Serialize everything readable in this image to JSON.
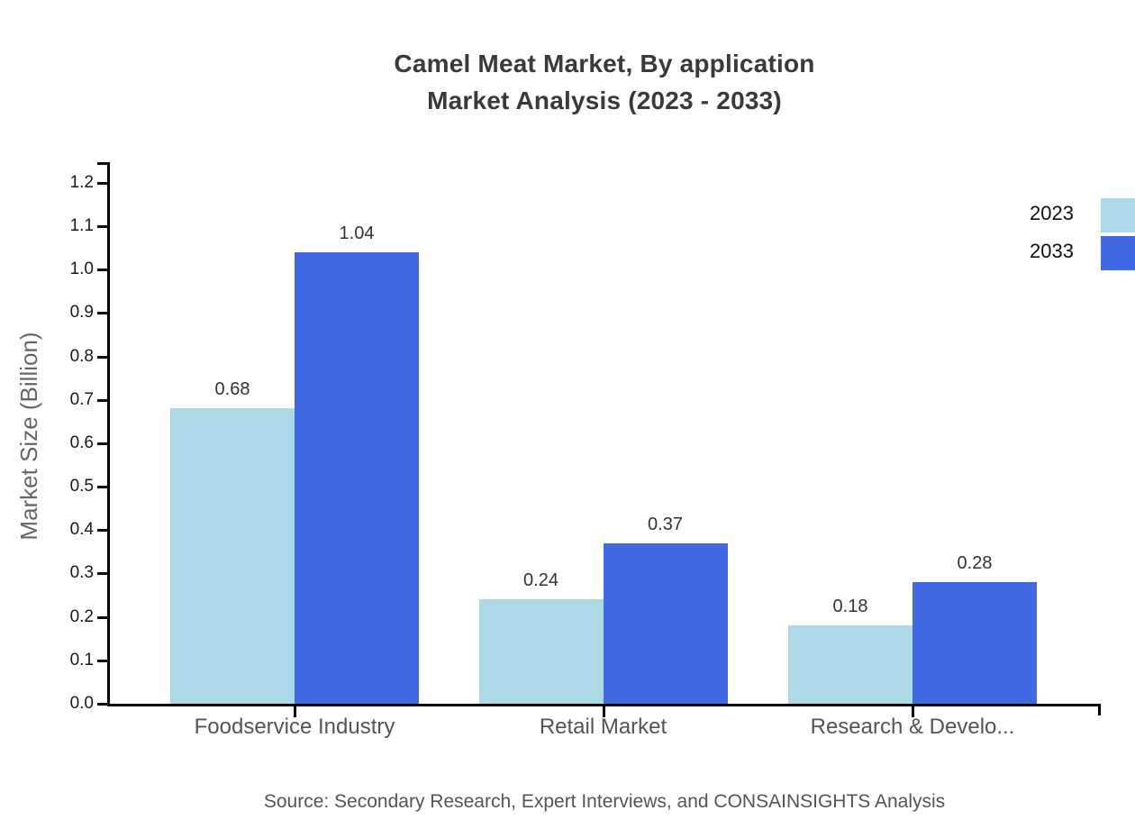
{
  "title": {
    "line1": "Camel Meat Market, By application",
    "line2": "Market Analysis (2023 - 2033)"
  },
  "source": "Source: Secondary Research, Expert Interviews, and CONSAINSIGHTS Analysis",
  "colors": {
    "series_2023": "#add8e6",
    "series_2033": "#4169e1",
    "axis": "#000000",
    "title_text": "#3a3a3a",
    "category_text": "#555555",
    "value_text": "#333333",
    "source_text": "#555555"
  },
  "chart_data": {
    "type": "bar",
    "title": "Camel Meat Market, By application Market Analysis (2023 - 2033)",
    "categories": [
      "Foodservice Industry",
      "Retail Market",
      "Research & Develo..."
    ],
    "series": [
      {
        "name": "2023",
        "color": "#add8e6",
        "values": [
          0.68,
          0.24,
          0.18
        ]
      },
      {
        "name": "2033",
        "color": "#4169e1",
        "values": [
          1.04,
          0.37,
          0.28
        ]
      }
    ],
    "value_labels": [
      "0.68",
      "1.04",
      "0.24",
      "0.37",
      "0.18",
      "0.28"
    ],
    "xlabel": "",
    "ylabel": "Market Size (Billion)",
    "ylim": [
      0.0,
      1.2
    ],
    "ytick_step": 0.1,
    "ytick_labels": [
      "0.0",
      "0.1",
      "0.2",
      "0.3",
      "0.4",
      "0.5",
      "0.6",
      "0.7",
      "0.8",
      "0.9",
      "1.0",
      "1.1",
      "1.2"
    ],
    "grid": false,
    "legend_position": "top-right"
  }
}
